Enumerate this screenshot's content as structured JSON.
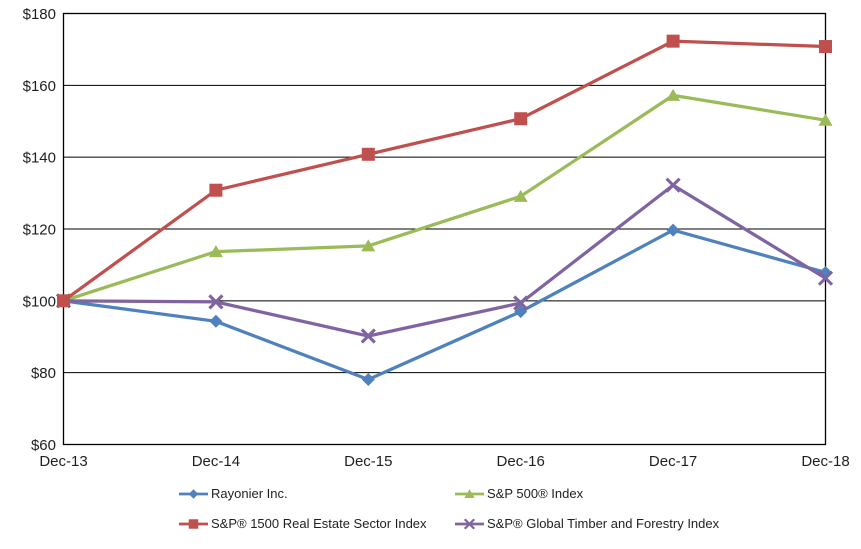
{
  "chart_data": {
    "type": "line",
    "title": "",
    "x_categories": [
      "Dec-13",
      "Dec-14",
      "Dec-15",
      "Dec-16",
      "Dec-17",
      "Dec-18"
    ],
    "y_ticks": [
      "$180",
      "$160",
      "$140",
      "$120",
      "$100",
      "$80",
      "$60"
    ],
    "ylim": [
      60,
      180
    ],
    "y_step": 20,
    "y_tick_prefix": "$",
    "grid": "horizontal",
    "legend_position": "bottom-two-columns",
    "axis_color": "#000000",
    "text_color": "#1f1f1f",
    "series": [
      {
        "name": "Rayonier Inc.",
        "color": "#4F81BD",
        "marker": "diamond",
        "values": [
          100.0,
          94.3,
          78.1,
          97.0,
          119.7,
          107.9
        ]
      },
      {
        "name": "S&P 500® Index",
        "color": "#9BBB59",
        "marker": "triangle",
        "values": [
          100.0,
          113.7,
          115.3,
          129.1,
          157.2,
          150.3
        ]
      },
      {
        "name": "S&P® 1500 Real Estate Sector Index",
        "color": "#C0504D",
        "marker": "square",
        "values": [
          100.0,
          130.8,
          140.8,
          150.7,
          172.3,
          170.8
        ]
      },
      {
        "name": "S&P® Global Timber and Forestry Index",
        "color": "#8064A2",
        "marker": "x",
        "values": [
          100.0,
          99.7,
          90.2,
          99.4,
          132.2,
          106.3
        ]
      }
    ]
  }
}
